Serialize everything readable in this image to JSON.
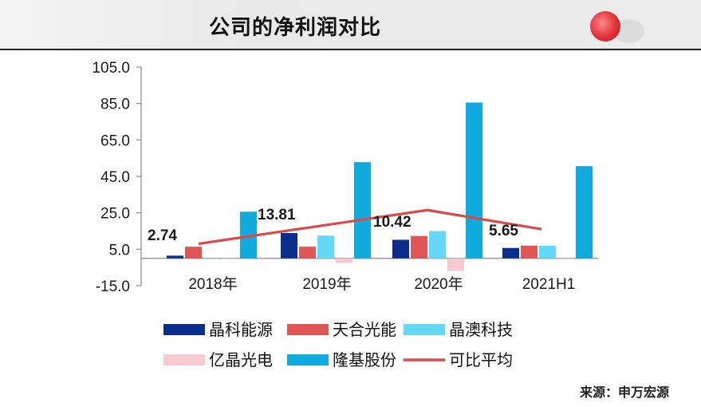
{
  "header": {
    "title": "公司的净利润对比"
  },
  "source": "来源：申万宏源",
  "chart_data": {
    "type": "bar",
    "categories": [
      "2018年",
      "2019年",
      "2020年",
      "2021H1"
    ],
    "ylim": [
      -15,
      105
    ],
    "yticks": [
      105,
      85,
      65,
      45,
      25,
      5,
      -15
    ],
    "ytick_labels": [
      "105.0",
      "85.0",
      "65.0",
      "45.0",
      "25.0",
      "5.0",
      "-15.0"
    ],
    "series": [
      {
        "name": "晶科能源",
        "color": "#0b2e8c",
        "values": [
          1.5,
          13.9,
          10.2,
          5.7
        ]
      },
      {
        "name": "天合光能",
        "color": "#e05555",
        "values": [
          6.4,
          6.4,
          12.3,
          7.0
        ]
      },
      {
        "name": "晶澳科技",
        "color": "#66d8f7",
        "values": [
          -0.3,
          12.5,
          15.0,
          7.0
        ]
      },
      {
        "name": "亿晶光电",
        "color": "#f7c9d3",
        "values": [
          0.0,
          -2.5,
          -7.0,
          -0.5
        ]
      },
      {
        "name": "隆基股份",
        "color": "#10aadf",
        "values": [
          25.6,
          52.8,
          85.5,
          50.6
        ]
      }
    ],
    "line_series": {
      "name": "可比平均",
      "color": "#d94a4a",
      "values": [
        2.74,
        13.81,
        10.42,
        5.65
      ]
    },
    "line_points": [
      {
        "category": "2018年",
        "value": 8.0
      },
      {
        "category": "2020年",
        "value": 26.5
      },
      {
        "category": "2021H1",
        "value": 16.0
      }
    ],
    "data_labels": [
      "2.74",
      "13.81",
      "10.42",
      "5.65"
    ],
    "legend": [
      {
        "name": "晶科能源",
        "kind": "bar",
        "color": "#0b2e8c"
      },
      {
        "name": "天合光能",
        "kind": "bar",
        "color": "#e05555"
      },
      {
        "name": "晶澳科技",
        "kind": "bar",
        "color": "#66d8f7"
      },
      {
        "name": "亿晶光电",
        "kind": "bar",
        "color": "#f7c9d3"
      },
      {
        "name": "隆基股份",
        "kind": "bar",
        "color": "#10aadf"
      },
      {
        "name": "可比平均",
        "kind": "line",
        "color": "#d94a4a"
      }
    ],
    "legend_position": "bottom",
    "grid": false
  }
}
